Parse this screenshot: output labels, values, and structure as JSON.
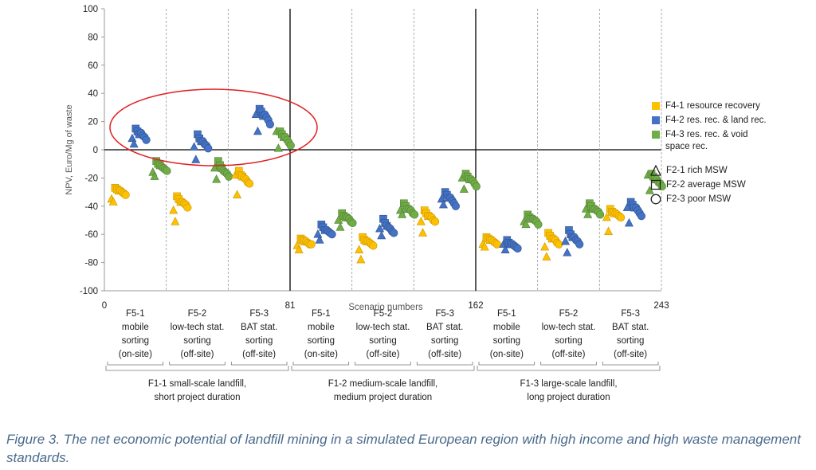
{
  "chart_data": {
    "type": "scatter",
    "title": "",
    "xlabel": "Scenario numbers",
    "ylabel": "NPV, Euro/Mg of waste",
    "ylim": [
      -100,
      100
    ],
    "xlim": [
      0,
      243
    ],
    "yticks": [
      "100",
      "80",
      "60",
      "40",
      "20",
      "0",
      "-20",
      "-40",
      "-60",
      "-80",
      "-100"
    ],
    "xticks": [
      "0",
      "81",
      "162",
      "243"
    ],
    "grid": false,
    "legend_position": "right",
    "colors": {
      "F4-1": "#ffc000",
      "F4-2": "#4472c4",
      "F4-3": "#70ad47"
    },
    "series": [
      {
        "name": "F4-1 resource recovery",
        "key": "F4-1"
      },
      {
        "name": "F4-2 res. rec. & land rec.",
        "key": "F4-2"
      },
      {
        "name": "F4-3 res. rec. & void space rec.",
        "key": "F4-3"
      }
    ],
    "shapes": [
      {
        "name": "F2-1 rich MSW",
        "shape": "triangle"
      },
      {
        "name": "F2-2 average MSW",
        "shape": "square"
      },
      {
        "name": "F2-3 poor MSW",
        "shape": "circle"
      }
    ],
    "sub_groups": [
      {
        "label": [
          "F5-1",
          "mobile",
          "sorting",
          "(on-site)"
        ]
      },
      {
        "label": [
          "F5-2",
          "low-tech stat.",
          "sorting",
          "(off-site)"
        ]
      },
      {
        "label": [
          "F5-3",
          "BAT stat.",
          "sorting",
          "(off-site)"
        ]
      },
      {
        "label": [
          "F5-1",
          "mobile",
          "sorting",
          "(on-site)"
        ]
      },
      {
        "label": [
          "F5-2",
          "low-tech stat.",
          "sorting",
          "(off-site)"
        ]
      },
      {
        "label": [
          "F5-3",
          "BAT stat.",
          "sorting",
          "(off-site)"
        ]
      },
      {
        "label": [
          "F5-1",
          "mobile",
          "sorting",
          "(on-site)"
        ]
      },
      {
        "label": [
          "F5-2",
          "low-tech stat.",
          "sorting",
          "(off-site)"
        ]
      },
      {
        "label": [
          "F5-3",
          "BAT stat.",
          "sorting",
          "(off-site)"
        ]
      }
    ],
    "groups": [
      {
        "label": [
          "F1-1 small-scale landfill,",
          "short project duration"
        ]
      },
      {
        "label": [
          "F1-2 medium-scale landfill,",
          "medium project duration"
        ]
      },
      {
        "label": [
          "F1-3 large-scale landfill,",
          "long project duration"
        ]
      }
    ],
    "points": [
      {
        "block": 0,
        "series": "F4-1",
        "tri": [
          -35,
          -37
        ],
        "sq": [
          -27,
          -28,
          -29
        ],
        "circ": [
          -29,
          -30,
          -31,
          -32
        ]
      },
      {
        "block": 0,
        "series": "F4-2",
        "tri": [
          8,
          4
        ],
        "sq": [
          15,
          13,
          11
        ],
        "circ": [
          12,
          10,
          9,
          7
        ]
      },
      {
        "block": 0,
        "series": "F4-3",
        "tri": [
          -16,
          -19
        ],
        "sq": [
          -8,
          -10,
          -11
        ],
        "circ": [
          -12,
          -13,
          -14,
          -15
        ]
      },
      {
        "block": 1,
        "series": "F4-1",
        "tri": [
          -43,
          -51
        ],
        "sq": [
          -33,
          -35,
          -37
        ],
        "circ": [
          -37,
          -38,
          -39,
          -41
        ]
      },
      {
        "block": 1,
        "series": "F4-2",
        "tri": [
          2,
          -7
        ],
        "sq": [
          11,
          8,
          6
        ],
        "circ": [
          6,
          4,
          3,
          1
        ]
      },
      {
        "block": 1,
        "series": "F4-3",
        "tri": [
          -13,
          -21
        ],
        "sq": [
          -8,
          -11,
          -13
        ],
        "circ": [
          -15,
          -16,
          -17,
          -19
        ]
      },
      {
        "block": 2,
        "series": "F4-1",
        "tri": [
          -18,
          -32
        ],
        "sq": [
          -15,
          -18,
          -19
        ],
        "circ": [
          -20,
          -21,
          -23,
          -24
        ]
      },
      {
        "block": 2,
        "series": "F4-2",
        "tri": [
          25,
          13
        ],
        "sq": [
          29,
          27,
          24
        ],
        "circ": [
          25,
          23,
          21,
          18
        ]
      },
      {
        "block": 2,
        "series": "F4-3",
        "tri": [
          13,
          1
        ],
        "sq": [
          13,
          11,
          9
        ],
        "circ": [
          9,
          7,
          5,
          3
        ]
      },
      {
        "block": 3,
        "series": "F4-1",
        "tri": [
          -68,
          -71
        ],
        "sq": [
          -63,
          -64,
          -65
        ],
        "circ": [
          -65,
          -66,
          -67,
          -67
        ]
      },
      {
        "block": 3,
        "series": "F4-2",
        "tri": [
          -60,
          -64
        ],
        "sq": [
          -53,
          -55,
          -57
        ],
        "circ": [
          -57,
          -58,
          -59,
          -60
        ]
      },
      {
        "block": 3,
        "series": "F4-3",
        "tri": [
          -50,
          -55
        ],
        "sq": [
          -45,
          -47,
          -48
        ],
        "circ": [
          -48,
          -49,
          -51,
          -52
        ]
      },
      {
        "block": 4,
        "series": "F4-1",
        "tri": [
          -71,
          -78
        ],
        "sq": [
          -62,
          -64,
          -65
        ],
        "circ": [
          -65,
          -66,
          -67,
          -68
        ]
      },
      {
        "block": 4,
        "series": "F4-2",
        "tri": [
          -56,
          -61
        ],
        "sq": [
          -49,
          -52,
          -54
        ],
        "circ": [
          -55,
          -56,
          -58,
          -59
        ]
      },
      {
        "block": 4,
        "series": "F4-3",
        "tri": [
          -43,
          -46
        ],
        "sq": [
          -38,
          -40,
          -42
        ],
        "circ": [
          -42,
          -43,
          -45,
          -46
        ]
      },
      {
        "block": 5,
        "series": "F4-1",
        "tri": [
          -51,
          -59
        ],
        "sq": [
          -43,
          -45,
          -47
        ],
        "circ": [
          -47,
          -48,
          -50,
          -51
        ]
      },
      {
        "block": 5,
        "series": "F4-2",
        "tri": [
          -35,
          -39
        ],
        "sq": [
          -30,
          -32,
          -34
        ],
        "circ": [
          -34,
          -36,
          -38,
          -40
        ]
      },
      {
        "block": 5,
        "series": "F4-3",
        "tri": [
          -20,
          -28
        ],
        "sq": [
          -17,
          -19,
          -21
        ],
        "circ": [
          -21,
          -22,
          -24,
          -26
        ]
      },
      {
        "block": 6,
        "series": "F4-1",
        "tri": [
          -67,
          -69
        ],
        "sq": [
          -62,
          -63,
          -64
        ],
        "circ": [
          -64,
          -65,
          -66,
          -67
        ]
      },
      {
        "block": 6,
        "series": "F4-2",
        "tri": [
          -67,
          -71
        ],
        "sq": [
          -64,
          -66,
          -67
        ],
        "circ": [
          -67,
          -68,
          -69,
          -70
        ]
      },
      {
        "block": 6,
        "series": "F4-3",
        "tri": [
          -51,
          -53
        ],
        "sq": [
          -46,
          -48,
          -49
        ],
        "circ": [
          -49,
          -50,
          -51,
          -53
        ]
      },
      {
        "block": 7,
        "series": "F4-1",
        "tri": [
          -69,
          -76
        ],
        "sq": [
          -59,
          -61,
          -63
        ],
        "circ": [
          -63,
          -64,
          -66,
          -67
        ]
      },
      {
        "block": 7,
        "series": "F4-2",
        "tri": [
          -65,
          -73
        ],
        "sq": [
          -57,
          -60,
          -62
        ],
        "circ": [
          -62,
          -64,
          -65,
          -67
        ]
      },
      {
        "block": 7,
        "series": "F4-3",
        "tri": [
          -42,
          -46
        ],
        "sq": [
          -38,
          -40,
          -42
        ],
        "circ": [
          -42,
          -43,
          -44,
          -46
        ]
      },
      {
        "block": 8,
        "series": "F4-1",
        "tri": [
          -48,
          -58
        ],
        "sq": [
          -42,
          -44,
          -45
        ],
        "circ": [
          -45,
          -46,
          -47,
          -48
        ]
      },
      {
        "block": 8,
        "series": "F4-2",
        "tri": [
          -41,
          -52
        ],
        "sq": [
          -37,
          -39,
          -41
        ],
        "circ": [
          -41,
          -43,
          -45,
          -47
        ]
      },
      {
        "block": 8,
        "series": "F4-3",
        "tri": [
          -18,
          -29
        ],
        "sq": [
          -17,
          -19,
          -21
        ],
        "circ": [
          -21,
          -23,
          -24,
          -26
        ]
      }
    ]
  },
  "legend": {
    "colors": [
      {
        "label": "F4-1 resource recovery",
        "color": "#ffc000"
      },
      {
        "label": "F4-2 res. rec. & land rec.",
        "color": "#4472c4"
      },
      {
        "label": "F4-3 res. rec. & void space rec.",
        "color": "#70ad47"
      }
    ],
    "shapes": [
      {
        "label": "F2-1 rich MSW",
        "shape": "triangle"
      },
      {
        "label": "F2-2 average MSW",
        "shape": "square"
      },
      {
        "label": "F2-3 poor MSW",
        "shape": "circle"
      }
    ]
  },
  "caption": "Figure 3. The net economic potential of landfill mining in a simulated European region with high income and high waste management standards."
}
